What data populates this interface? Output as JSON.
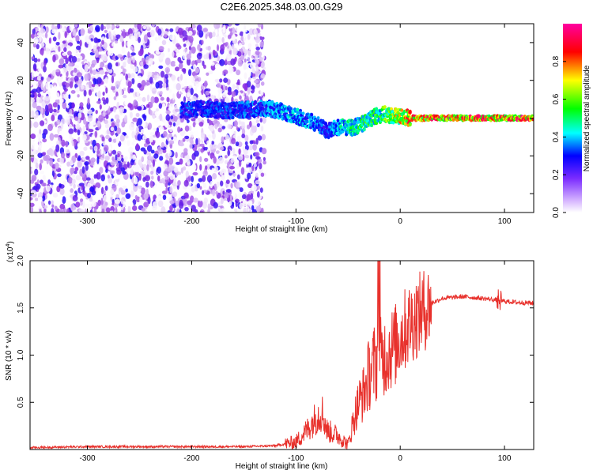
{
  "figure": {
    "title": "C2E6.2025.348.03.00.G29"
  },
  "colors": {
    "snr_line": "#e8312c",
    "frame": "#000000",
    "background": "#ffffff"
  },
  "chart_data": [
    {
      "type": "heatmap",
      "title": "",
      "xlabel": "Height of straight line (km)",
      "ylabel": "Frequency (Hz)",
      "xlim": [
        -355,
        128
      ],
      "ylim": [
        -50,
        50
      ],
      "x_ticks": [
        -300,
        -200,
        -100,
        0,
        100
      ],
      "x_tick_labels": [
        "-300",
        "-200",
        "-100",
        "0",
        "100"
      ],
      "y_ticks": [
        -40,
        -20,
        0,
        20,
        40
      ],
      "y_tick_labels": [
        "-40",
        "-20",
        "0",
        "20",
        "40"
      ],
      "colorbar": {
        "label": "Normalized spectral amplitude",
        "range": [
          0,
          1
        ],
        "ticks": [
          0.0,
          0.2,
          0.4,
          0.6,
          0.8
        ],
        "tick_labels": [
          "0.0",
          "0.2",
          "0.4",
          "0.6",
          "0.8"
        ],
        "colormap": [
          "#ffffff",
          "#8a2be2",
          "#0000ff",
          "#00ffff",
          "#00ff00",
          "#ffff00",
          "#ff0000",
          "#ff00a0"
        ]
      },
      "noise_region": {
        "x_range": [
          -355,
          -130
        ],
        "amplitude": "low (0.0-0.2)"
      },
      "signal_track": [
        {
          "x": -210,
          "freq": 4,
          "amp": 0.35
        },
        {
          "x": -190,
          "freq": 5,
          "amp": 0.35
        },
        {
          "x": -170,
          "freq": 4,
          "amp": 0.35
        },
        {
          "x": -125,
          "freq": 5,
          "amp": 0.4
        },
        {
          "x": -110,
          "freq": 3,
          "amp": 0.45
        },
        {
          "x": -95,
          "freq": 0,
          "amp": 0.45
        },
        {
          "x": -80,
          "freq": -3,
          "amp": 0.4
        },
        {
          "x": -70,
          "freq": -7,
          "amp": 0.35
        },
        {
          "x": -60,
          "freq": -5,
          "amp": 0.5
        },
        {
          "x": -45,
          "freq": -5,
          "amp": 0.55
        },
        {
          "x": -35,
          "freq": -3,
          "amp": 0.6
        },
        {
          "x": -25,
          "freq": 1,
          "amp": 0.6
        },
        {
          "x": -15,
          "freq": 2,
          "amp": 0.65
        },
        {
          "x": -5,
          "freq": 1,
          "amp": 0.75
        },
        {
          "x": 10,
          "freq": 0,
          "amp": 0.9
        },
        {
          "x": 60,
          "freq": 0,
          "amp": 0.95
        },
        {
          "x": 128,
          "freq": 0,
          "amp": 0.95
        }
      ]
    },
    {
      "type": "line",
      "title": "",
      "xlabel": "Height of straight line (km)",
      "ylabel": "SNR (10 * v/v)",
      "scale_label": "(x10",
      "scale_exponent": "4",
      "scale_suffix": ")",
      "xlim": [
        -355,
        128
      ],
      "ylim": [
        0,
        2.0
      ],
      "x_ticks": [
        -300,
        -200,
        -100,
        0,
        100
      ],
      "x_tick_labels": [
        "-300",
        "-200",
        "-100",
        "0",
        "100"
      ],
      "y_ticks": [
        0.5,
        1.0,
        1.5,
        2.0
      ],
      "y_tick_labels": [
        "0.5",
        "1.0",
        "1.5",
        "2.0"
      ],
      "series": [
        {
          "name": "SNR",
          "x": [
            -355,
            -300,
            -250,
            -200,
            -150,
            -120,
            -100,
            -90,
            -80,
            -75,
            -70,
            -60,
            -50,
            -45,
            -40,
            -35,
            -30,
            -25,
            -20,
            -15,
            -10,
            -5,
            0,
            10,
            20,
            30,
            40,
            60,
            80,
            95,
            100,
            110,
            128
          ],
          "y": [
            0.02,
            0.03,
            0.03,
            0.03,
            0.03,
            0.04,
            0.08,
            0.2,
            0.35,
            0.4,
            0.2,
            0.15,
            0.05,
            0.3,
            0.5,
            0.6,
            0.8,
            0.9,
            0.95,
            1.0,
            1.05,
            1.1,
            1.2,
            1.35,
            1.45,
            1.55,
            1.6,
            1.62,
            1.6,
            1.58,
            1.57,
            1.56,
            1.55
          ]
        }
      ]
    }
  ]
}
